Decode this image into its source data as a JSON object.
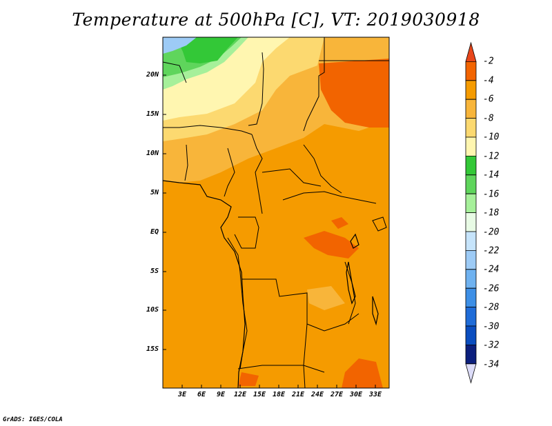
{
  "title": "Temperature at 500hPa [C], VT: 2019030918",
  "footer": "GrADS: IGES/COLA",
  "map": {
    "lat_labels": [
      "20N",
      "15N",
      "10N",
      "5N",
      "EQ",
      "5S",
      "10S",
      "15S"
    ],
    "lon_labels": [
      "3E",
      "6E",
      "9E",
      "12E",
      "15E",
      "18E",
      "21E",
      "24E",
      "27E",
      "30E",
      "33E"
    ]
  },
  "colorbar": {
    "levels": [
      "-2",
      "-4",
      "-6",
      "-8",
      "-10",
      "-12",
      "-14",
      "-16",
      "-18",
      "-20",
      "-22",
      "-24",
      "-26",
      "-28",
      "-30",
      "-32",
      "-34"
    ],
    "colors": [
      "#e8461b",
      "#f26400",
      "#f59b00",
      "#f8b53a",
      "#fcd970",
      "#fff6b0",
      "#33c837",
      "#5fd55c",
      "#a6f09a",
      "#e8fbe5",
      "#c6e4fb",
      "#9dcbf6",
      "#6fb2f0",
      "#3d8fe6",
      "#1f6cd8",
      "#0a4dbf",
      "#0b1f7d",
      "#dcdcf8"
    ]
  }
}
